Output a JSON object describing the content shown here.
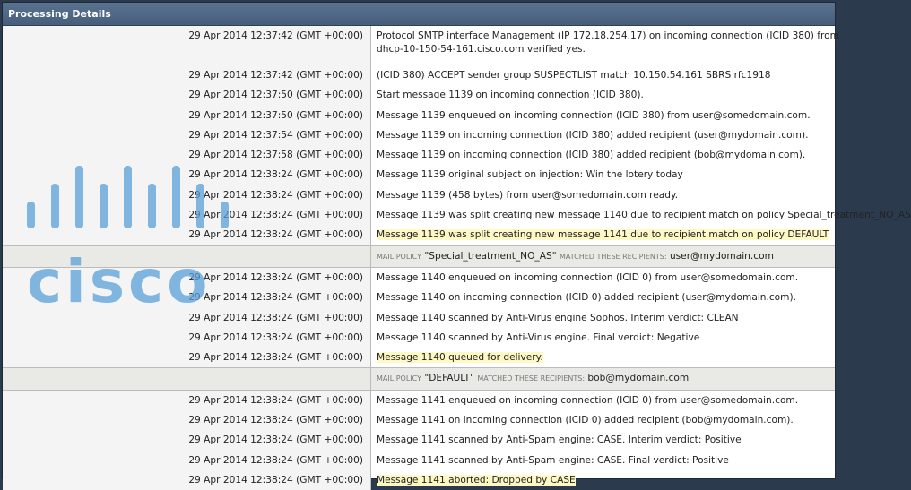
{
  "title": "Processing Details",
  "rows": [
    {
      "ts": "29 Apr 2014 12:37:42 (GMT +00:00)",
      "msg": "Protocol SMTP interface Management (IP 172.18.254.17) on incoming connection (ICID 380) from",
      "msg2": "dhcp-10-150-54-161.cisco.com verified yes."
    },
    {
      "ts": "29 Apr 2014 12:37:42 (GMT +00:00)",
      "msg": "(ICID 380) ACCEPT sender group SUSPECTLIST match 10.150.54.161 SBRS rfc1918"
    },
    {
      "ts": "29 Apr 2014 12:37:50 (GMT +00:00)",
      "msg": "Start message 1139 on incoming connection (ICID 380)."
    },
    {
      "ts": "29 Apr 2014 12:37:50 (GMT +00:00)",
      "msg": "Message 1139 enqueued on incoming connection (ICID 380) from user@somedomain.com."
    },
    {
      "ts": "29 Apr 2014 12:37:54 (GMT +00:00)",
      "msg": "Message 1139 on incoming connection (ICID 380) added recipient (user@mydomain.com)."
    },
    {
      "ts": "29 Apr 2014 12:37:58 (GMT +00:00)",
      "msg": "Message 1139 on incoming connection (ICID 380) added recipient (bob@mydomain.com)."
    },
    {
      "ts": "29 Apr 2014 12:38:24 (GMT +00:00)",
      "msg": "Message 1139 original subject on injection: Win the lotery today"
    },
    {
      "ts": "29 Apr 2014 12:38:24 (GMT +00:00)",
      "msg": "Message 1139 (458 bytes) from user@somedomain.com ready."
    },
    {
      "ts": "29 Apr 2014 12:38:24 (GMT +00:00)",
      "msg": "Message 1139 was split creating new message 1140 due to recipient match on policy Special_treatment_NO_AS"
    },
    {
      "ts": "29 Apr 2014 12:38:24 (GMT +00:00)",
      "msg": "Message 1139 was split creating new message 1141 due to recipient match on policy DEFAULT",
      "highlight": true
    }
  ],
  "policy1": {
    "prefix": "Mail Policy",
    "name": "\"Special_treatment_NO_AS\"",
    "middle": "Matched these recipients:",
    "recipient": "user@mydomain.com"
  },
  "rows2": [
    {
      "ts": "29 Apr 2014 12:38:24 (GMT +00:00)",
      "msg": "Message 1140 enqueued on incoming connection (ICID 0) from user@somedomain.com."
    },
    {
      "ts": "29 Apr 2014 12:38:24 (GMT +00:00)",
      "msg": "Message 1140 on incoming connection (ICID 0) added recipient (user@mydomain.com)."
    },
    {
      "ts": "29 Apr 2014 12:38:24 (GMT +00:00)",
      "msg": "Message 1140 scanned by Anti-Virus engine Sophos. Interim verdict: CLEAN"
    },
    {
      "ts": "29 Apr 2014 12:38:24 (GMT +00:00)",
      "msg": "Message 1140 scanned by Anti-Virus engine. Final verdict: Negative"
    },
    {
      "ts": "29 Apr 2014 12:38:24 (GMT +00:00)",
      "msg": "Message 1140 queued for delivery.",
      "highlight": true
    }
  ],
  "policy2": {
    "prefix": "Mail Policy",
    "name": "\"DEFAULT\"",
    "middle": "Matched these recipients:",
    "recipient": "bob@mydomain.com"
  },
  "rows3": [
    {
      "ts": "29 Apr 2014 12:38:24 (GMT +00:00)",
      "msg": "Message 1141 enqueued on incoming connection (ICID 0) from user@somedomain.com."
    },
    {
      "ts": "29 Apr 2014 12:38:24 (GMT +00:00)",
      "msg": "Message 1141 on incoming connection (ICID 0) added recipient (bob@mydomain.com)."
    },
    {
      "ts": "29 Apr 2014 12:38:24 (GMT +00:00)",
      "msg": "Message 1141 scanned by Anti-Spam engine: CASE. Interim verdict: Positive"
    },
    {
      "ts": "29 Apr 2014 12:38:24 (GMT +00:00)",
      "msg": "Message 1141 scanned by Anti-Spam engine: CASE. Final verdict: Positive"
    },
    {
      "ts": "29 Apr 2014 12:38:24 (GMT +00:00)",
      "msg": "Message 1141 aborted: Dropped by CASE",
      "highlight": true
    }
  ],
  "watermark_logo": "cisco",
  "colors": {
    "header": "#4e6784",
    "highlight": "#fdf8c4",
    "policy_row": "#e9e9e5",
    "logo": "#5aa0d8"
  }
}
